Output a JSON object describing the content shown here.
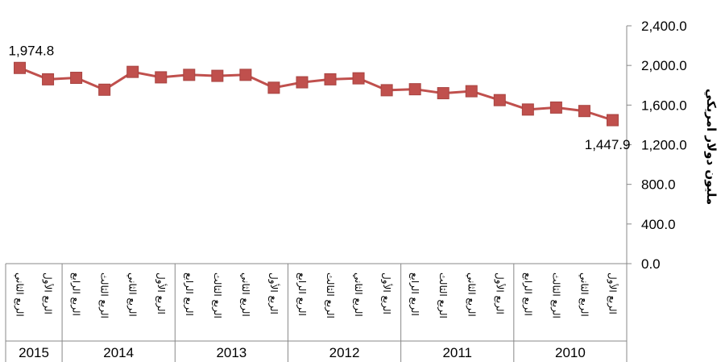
{
  "chart_data": {
    "type": "line",
    "ylabel": "مليون دولار امريكي",
    "ylim": [
      0,
      2400
    ],
    "yticks": [
      "0.0",
      "400.0",
      "800.0",
      "1,200.0",
      "1,600.0",
      "2,000.0",
      "2,400.0"
    ],
    "grid": false,
    "x_order": "right-to-left",
    "color": "#c0504d",
    "years": [
      {
        "label": "2010",
        "count": 4
      },
      {
        "label": "2011",
        "count": 4
      },
      {
        "label": "2012",
        "count": 4
      },
      {
        "label": "2013",
        "count": 4
      },
      {
        "label": "2014",
        "count": 4
      },
      {
        "label": "2015",
        "count": 2
      }
    ],
    "quarter_labels": [
      "الربع الأول",
      "الربع الثاني",
      "الربع الثالث",
      "الربع الرابع"
    ],
    "values": [
      1447.9,
      1540,
      1575,
      1555,
      1650,
      1740,
      1720,
      1760,
      1750,
      1870,
      1860,
      1830,
      1775,
      1905,
      1895,
      1905,
      1880,
      1935,
      1755,
      1875,
      1860,
      1974.8
    ],
    "data_labels": [
      {
        "index": 0,
        "text": "1,447.9"
      },
      {
        "index": 21,
        "text": "1,974.8"
      }
    ]
  }
}
